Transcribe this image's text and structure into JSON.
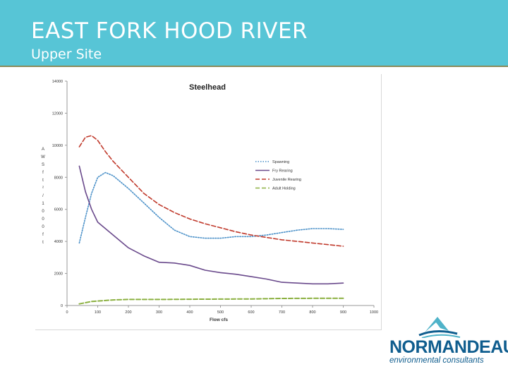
{
  "slide": {
    "title": "EAST FORK HOOD RIVER",
    "subtitle": "Upper Site"
  },
  "logo": {
    "name": "NORMANDEAU",
    "tagline": "environmental consultants",
    "color": "#0f5d8e"
  },
  "chart_data": {
    "type": "line",
    "title": "Steelhead",
    "xlabel": "Flow cfs",
    "ylabel": "AWS ft²/1000 ft",
    "xlim": [
      0,
      1000
    ],
    "ylim": [
      0,
      14000
    ],
    "x_ticks": [
      0,
      100,
      200,
      300,
      400,
      500,
      600,
      700,
      800,
      900,
      1000
    ],
    "y_ticks": [
      0,
      2000,
      4000,
      6000,
      8000,
      10000,
      12000,
      14000
    ],
    "grid": false,
    "legend_position": "right",
    "series": [
      {
        "name": "Spawning",
        "color": "#4a90c8",
        "style": "dotted",
        "points": [
          [
            40,
            3900
          ],
          [
            60,
            5500
          ],
          [
            80,
            7000
          ],
          [
            100,
            8000
          ],
          [
            125,
            8300
          ],
          [
            150,
            8100
          ],
          [
            200,
            7300
          ],
          [
            250,
            6400
          ],
          [
            300,
            5500
          ],
          [
            350,
            4700
          ],
          [
            400,
            4300
          ],
          [
            450,
            4200
          ],
          [
            500,
            4200
          ],
          [
            550,
            4300
          ],
          [
            600,
            4300
          ],
          [
            650,
            4400
          ],
          [
            700,
            4550
          ],
          [
            750,
            4700
          ],
          [
            800,
            4800
          ],
          [
            850,
            4800
          ],
          [
            900,
            4750
          ]
        ]
      },
      {
        "name": "Fry Rearing",
        "color": "#6a4a8c",
        "style": "solid",
        "points": [
          [
            40,
            8700
          ],
          [
            60,
            7100
          ],
          [
            80,
            6000
          ],
          [
            100,
            5200
          ],
          [
            150,
            4400
          ],
          [
            200,
            3600
          ],
          [
            250,
            3100
          ],
          [
            300,
            2700
          ],
          [
            350,
            2650
          ],
          [
            400,
            2500
          ],
          [
            450,
            2200
          ],
          [
            500,
            2050
          ],
          [
            550,
            1950
          ],
          [
            600,
            1800
          ],
          [
            650,
            1650
          ],
          [
            700,
            1450
          ],
          [
            750,
            1400
          ],
          [
            800,
            1350
          ],
          [
            850,
            1350
          ],
          [
            900,
            1400
          ]
        ]
      },
      {
        "name": "Juvenile Rearing",
        "color": "#c0392b",
        "style": "dashed",
        "points": [
          [
            40,
            9900
          ],
          [
            60,
            10500
          ],
          [
            80,
            10600
          ],
          [
            100,
            10300
          ],
          [
            125,
            9600
          ],
          [
            150,
            9000
          ],
          [
            200,
            8000
          ],
          [
            250,
            7000
          ],
          [
            300,
            6300
          ],
          [
            350,
            5800
          ],
          [
            400,
            5400
          ],
          [
            450,
            5100
          ],
          [
            500,
            4850
          ],
          [
            550,
            4600
          ],
          [
            600,
            4400
          ],
          [
            650,
            4250
          ],
          [
            700,
            4100
          ],
          [
            750,
            4000
          ],
          [
            800,
            3900
          ],
          [
            850,
            3800
          ],
          [
            900,
            3700
          ]
        ]
      },
      {
        "name": "Adult Holding",
        "color": "#8bb040",
        "style": "dashed",
        "points": [
          [
            40,
            100
          ],
          [
            80,
            250
          ],
          [
            150,
            350
          ],
          [
            200,
            380
          ],
          [
            300,
            380
          ],
          [
            400,
            390
          ],
          [
            500,
            400
          ],
          [
            600,
            410
          ],
          [
            700,
            440
          ],
          [
            800,
            450
          ],
          [
            900,
            450
          ]
        ]
      }
    ]
  }
}
